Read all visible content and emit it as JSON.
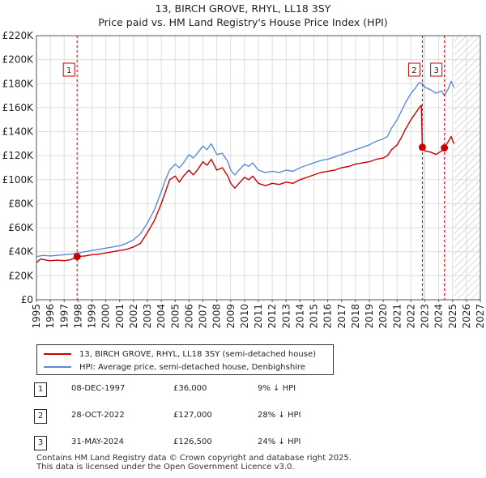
{
  "chart_data": {
    "type": "line",
    "title": "13, BIRCH GROVE, RHYL, LL18 3SY",
    "subtitle": "Price paid vs. HM Land Registry's House Price Index (HPI)",
    "xlim": [
      1995,
      2027
    ],
    "ylim": [
      0,
      220000
    ],
    "x_ticks": [
      "1995",
      "1996",
      "1997",
      "1998",
      "1999",
      "2000",
      "2001",
      "2002",
      "2003",
      "2004",
      "2005",
      "2006",
      "2007",
      "2008",
      "2009",
      "2010",
      "2011",
      "2012",
      "2013",
      "2014",
      "2015",
      "2016",
      "2017",
      "2018",
      "2019",
      "2020",
      "2021",
      "2022",
      "2023",
      "2024",
      "2025",
      "2026",
      "2027"
    ],
    "y_ticks": [
      {
        "value": 0,
        "label": "£0"
      },
      {
        "value": 20000,
        "label": "£20K"
      },
      {
        "value": 40000,
        "label": "£40K"
      },
      {
        "value": 60000,
        "label": "£60K"
      },
      {
        "value": 80000,
        "label": "£80K"
      },
      {
        "value": 100000,
        "label": "£100K"
      },
      {
        "value": 120000,
        "label": "£120K"
      },
      {
        "value": 140000,
        "label": "£140K"
      },
      {
        "value": 160000,
        "label": "£160K"
      },
      {
        "value": 180000,
        "label": "£180K"
      },
      {
        "value": 200000,
        "label": "£200K"
      },
      {
        "value": 220000,
        "label": "£220K"
      }
    ],
    "future_from": 2025.1,
    "shaded_periods": [
      [
        2022.82,
        2023.0
      ],
      [
        2024.41,
        2024.55
      ]
    ],
    "series": [
      {
        "name": "13, BIRCH GROVE, RHYL, LL18 3SY (semi-detached house)",
        "color": "#cc0000",
        "points": [
          [
            1995.0,
            31000
          ],
          [
            1995.3,
            34000
          ],
          [
            1995.7,
            33000
          ],
          [
            1996.0,
            32500
          ],
          [
            1996.5,
            33000
          ],
          [
            1997.0,
            32500
          ],
          [
            1997.5,
            33500
          ],
          [
            1997.93,
            36000
          ],
          [
            1998.5,
            36500
          ],
          [
            1999.0,
            37500
          ],
          [
            1999.5,
            38000
          ],
          [
            2000.0,
            39000
          ],
          [
            2000.5,
            40000
          ],
          [
            2001.0,
            41000
          ],
          [
            2001.5,
            42000
          ],
          [
            2002.0,
            44000
          ],
          [
            2002.5,
            47000
          ],
          [
            2003.0,
            56000
          ],
          [
            2003.5,
            66000
          ],
          [
            2004.0,
            80000
          ],
          [
            2004.3,
            90000
          ],
          [
            2004.6,
            100000
          ],
          [
            2005.0,
            103000
          ],
          [
            2005.3,
            98000
          ],
          [
            2005.6,
            103000
          ],
          [
            2006.0,
            108000
          ],
          [
            2006.3,
            104000
          ],
          [
            2006.6,
            108000
          ],
          [
            2007.0,
            115000
          ],
          [
            2007.3,
            112000
          ],
          [
            2007.6,
            117000
          ],
          [
            2008.0,
            108000
          ],
          [
            2008.4,
            110000
          ],
          [
            2008.8,
            103000
          ],
          [
            2009.0,
            97000
          ],
          [
            2009.3,
            93000
          ],
          [
            2009.6,
            97000
          ],
          [
            2010.0,
            102000
          ],
          [
            2010.3,
            100000
          ],
          [
            2010.6,
            103000
          ],
          [
            2011.0,
            97000
          ],
          [
            2011.5,
            95000
          ],
          [
            2012.0,
            97000
          ],
          [
            2012.5,
            96000
          ],
          [
            2013.0,
            98000
          ],
          [
            2013.5,
            97000
          ],
          [
            2014.0,
            100000
          ],
          [
            2014.5,
            102000
          ],
          [
            2015.0,
            104000
          ],
          [
            2015.5,
            106000
          ],
          [
            2016.0,
            107000
          ],
          [
            2016.5,
            108000
          ],
          [
            2017.0,
            110000
          ],
          [
            2017.5,
            111000
          ],
          [
            2018.0,
            113000
          ],
          [
            2018.5,
            114000
          ],
          [
            2019.0,
            115000
          ],
          [
            2019.5,
            117000
          ],
          [
            2020.0,
            118000
          ],
          [
            2020.3,
            120000
          ],
          [
            2020.6,
            125000
          ],
          [
            2021.0,
            129000
          ],
          [
            2021.3,
            135000
          ],
          [
            2021.6,
            142000
          ],
          [
            2022.0,
            150000
          ],
          [
            2022.3,
            155000
          ],
          [
            2022.6,
            160000
          ],
          [
            2022.75,
            162000
          ],
          [
            2022.82,
            127000
          ],
          [
            2023.0,
            124000
          ],
          [
            2023.4,
            123000
          ],
          [
            2023.8,
            121000
          ],
          [
            2024.2,
            124000
          ],
          [
            2024.41,
            126500
          ],
          [
            2024.7,
            132000
          ],
          [
            2024.9,
            136000
          ],
          [
            2025.1,
            130000
          ]
        ]
      },
      {
        "name": "HPI: Average price, semi-detached house, Denbighshire",
        "color": "#5b8dd6",
        "points": [
          [
            1995.0,
            36000
          ],
          [
            1995.5,
            37000
          ],
          [
            1996.0,
            36500
          ],
          [
            1996.5,
            37000
          ],
          [
            1997.0,
            37500
          ],
          [
            1997.5,
            38000
          ],
          [
            1998.0,
            39000
          ],
          [
            1998.5,
            40000
          ],
          [
            1999.0,
            41000
          ],
          [
            1999.5,
            42000
          ],
          [
            2000.0,
            43000
          ],
          [
            2000.5,
            44000
          ],
          [
            2001.0,
            45000
          ],
          [
            2001.5,
            47000
          ],
          [
            2002.0,
            50000
          ],
          [
            2002.5,
            55000
          ],
          [
            2003.0,
            64000
          ],
          [
            2003.5,
            75000
          ],
          [
            2004.0,
            90000
          ],
          [
            2004.3,
            100000
          ],
          [
            2004.6,
            108000
          ],
          [
            2005.0,
            113000
          ],
          [
            2005.3,
            110000
          ],
          [
            2005.6,
            114000
          ],
          [
            2006.0,
            121000
          ],
          [
            2006.3,
            118000
          ],
          [
            2006.6,
            122000
          ],
          [
            2007.0,
            128000
          ],
          [
            2007.3,
            125000
          ],
          [
            2007.6,
            130000
          ],
          [
            2008.0,
            121000
          ],
          [
            2008.4,
            122000
          ],
          [
            2008.8,
            115000
          ],
          [
            2009.0,
            108000
          ],
          [
            2009.3,
            104000
          ],
          [
            2009.6,
            108000
          ],
          [
            2010.0,
            113000
          ],
          [
            2010.3,
            111000
          ],
          [
            2010.6,
            114000
          ],
          [
            2011.0,
            108000
          ],
          [
            2011.5,
            106000
          ],
          [
            2012.0,
            107000
          ],
          [
            2012.5,
            106000
          ],
          [
            2013.0,
            108000
          ],
          [
            2013.5,
            107000
          ],
          [
            2014.0,
            110000
          ],
          [
            2014.5,
            112000
          ],
          [
            2015.0,
            114000
          ],
          [
            2015.5,
            116000
          ],
          [
            2016.0,
            117000
          ],
          [
            2016.5,
            119000
          ],
          [
            2017.0,
            121000
          ],
          [
            2017.5,
            123000
          ],
          [
            2018.0,
            125000
          ],
          [
            2018.5,
            127000
          ],
          [
            2019.0,
            129000
          ],
          [
            2019.5,
            132000
          ],
          [
            2020.0,
            134000
          ],
          [
            2020.3,
            136000
          ],
          [
            2020.6,
            143000
          ],
          [
            2021.0,
            150000
          ],
          [
            2021.3,
            157000
          ],
          [
            2021.6,
            164000
          ],
          [
            2022.0,
            172000
          ],
          [
            2022.3,
            176000
          ],
          [
            2022.6,
            181000
          ],
          [
            2022.82,
            180000
          ],
          [
            2023.0,
            177000
          ],
          [
            2023.4,
            175000
          ],
          [
            2023.8,
            172000
          ],
          [
            2024.2,
            174000
          ],
          [
            2024.41,
            170000
          ],
          [
            2024.7,
            176000
          ],
          [
            2024.9,
            182000
          ],
          [
            2025.1,
            177000
          ]
        ]
      }
    ],
    "sales": [
      {
        "id": "1",
        "x": 1997.93,
        "y": 36000
      },
      {
        "id": "2",
        "x": 2022.82,
        "y": 127000
      },
      {
        "id": "3",
        "x": 2024.41,
        "y": 126500
      }
    ]
  },
  "legend": {
    "property_label": "13, BIRCH GROVE, RHYL, LL18 3SY (semi-detached house)",
    "hpi_label": "HPI: Average price, semi-detached house, Denbighshire",
    "property_color": "#cc0000",
    "hpi_color": "#5b8dd6"
  },
  "sales_table": [
    {
      "num": "1",
      "date": "08-DEC-1997",
      "price": "£36,000",
      "hpi": "9% ↓ HPI"
    },
    {
      "num": "2",
      "date": "28-OCT-2022",
      "price": "£127,000",
      "hpi": "28% ↓ HPI"
    },
    {
      "num": "3",
      "date": "31-MAY-2024",
      "price": "£126,500",
      "hpi": "24% ↓ HPI"
    }
  ],
  "footer": {
    "line1": "Contains HM Land Registry data © Crown copyright and database right 2025.",
    "line2": "This data is licensed under the Open Government Licence v3.0."
  }
}
